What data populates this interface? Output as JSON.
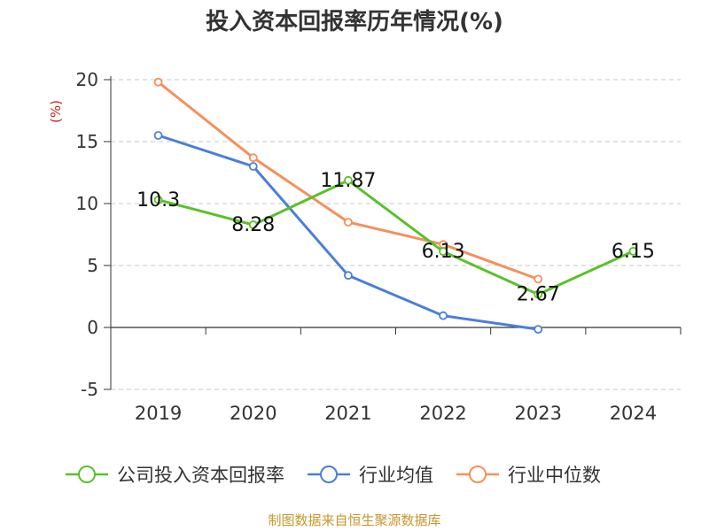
{
  "chart_data": {
    "type": "line",
    "title": "投入资本回报率历年情况(%)",
    "ylabel": "(%)",
    "xlabel": "",
    "categories": [
      "2019",
      "2020",
      "2021",
      "2022",
      "2023",
      "2024"
    ],
    "ylim": [
      -5,
      20
    ],
    "yticks": [
      20,
      15,
      10,
      5,
      0,
      -5
    ],
    "grid": true,
    "legend_position": "bottom",
    "series": [
      {
        "name": "公司投入资本回报率",
        "color": "#5ac12a",
        "values": [
          10.3,
          8.28,
          11.87,
          6.13,
          2.67,
          6.15
        ],
        "labels": [
          "10.3",
          "8.28",
          "11.87",
          "6.13",
          "2.67",
          "6.15"
        ]
      },
      {
        "name": "行业均值",
        "color": "#4a7fd8",
        "values": [
          15.5,
          13.0,
          4.2,
          0.95,
          -0.15,
          null
        ]
      },
      {
        "name": "行业中位数",
        "color": "#f5905a",
        "values": [
          19.8,
          13.7,
          8.5,
          6.7,
          3.9,
          null
        ]
      }
    ],
    "source": "制图数据来自恒生聚源数据库"
  }
}
